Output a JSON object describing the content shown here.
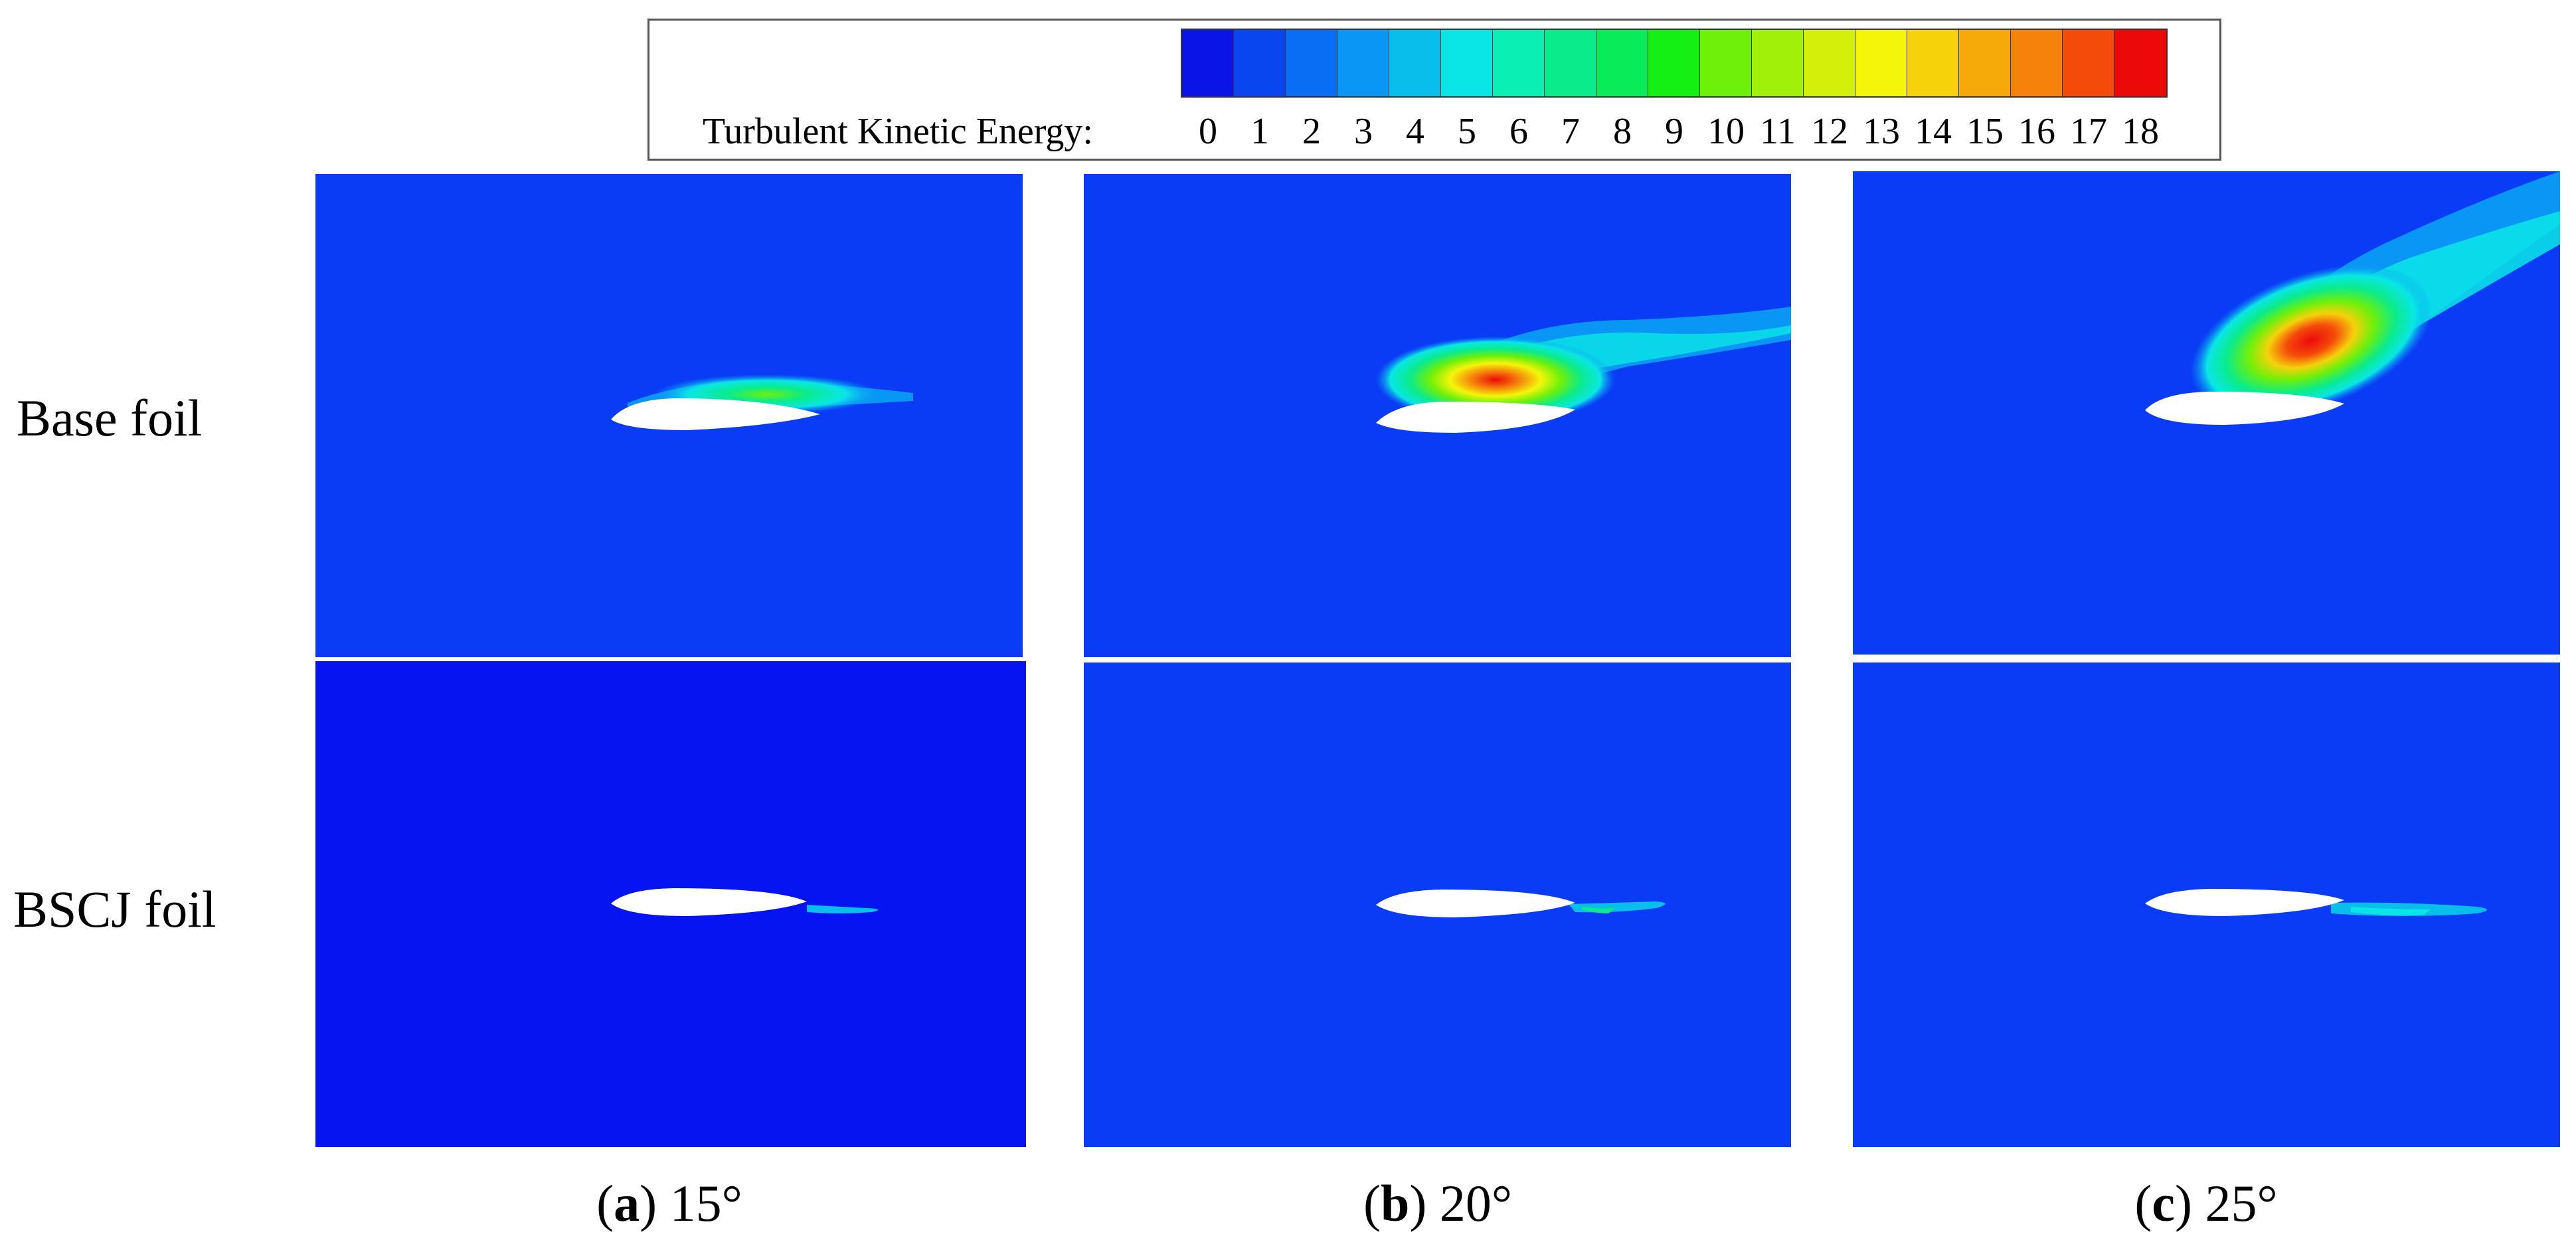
{
  "legend": {
    "title": "Turbulent Kinetic Energy:",
    "ticks": [
      "0",
      "1",
      "2",
      "3",
      "4",
      "5",
      "6",
      "7",
      "8",
      "9",
      "10",
      "11",
      "12",
      "13",
      "14",
      "15",
      "16",
      "17",
      "18"
    ],
    "colors": [
      "#0a14e6",
      "#0a46f0",
      "#0a6ef5",
      "#0a96f5",
      "#0abeeb",
      "#0ae6e6",
      "#0af0b4",
      "#0aeb8c",
      "#0aeb5a",
      "#14f014",
      "#6ef00a",
      "#a0f00a",
      "#d2f00a",
      "#f5f50a",
      "#f5d20a",
      "#f5aa0a",
      "#f5820a",
      "#f54b0a",
      "#eb0a0a"
    ]
  },
  "rows": [
    {
      "label": "Base foil"
    },
    {
      "label": "BSCJ foil"
    }
  ],
  "columns": [
    {
      "letter": "a",
      "angle": "15°"
    },
    {
      "letter": "b",
      "angle": "20°"
    },
    {
      "letter": "c",
      "angle": "25°"
    }
  ],
  "background_colors": {
    "base": "#0a3cf5",
    "bscj_15": "#0514f0",
    "bscj_other": "#0a3cf5"
  }
}
